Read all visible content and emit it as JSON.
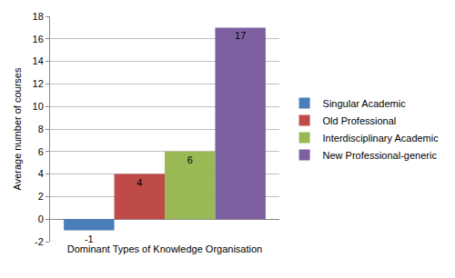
{
  "chart_data": {
    "type": "bar",
    "x_label": "Dominant Types of Knowledge Organisation",
    "y_label": "Average number of courses",
    "categories": [
      null
    ],
    "series": [
      {
        "name": "Singular Academic",
        "color": "#4a7ebb",
        "values": [
          -1
        ]
      },
      {
        "name": "Old Professional",
        "color": "#be4b48",
        "values": [
          4
        ]
      },
      {
        "name": "Interdisciplinary Academic",
        "color": "#98b954",
        "values": [
          6
        ]
      },
      {
        "name": "New Professional-generic",
        "color": "#7d60a0",
        "values": [
          17
        ]
      }
    ],
    "ylim": [
      -2,
      18
    ],
    "yticks": [
      -2,
      0,
      2,
      4,
      6,
      8,
      10,
      12,
      14,
      16,
      18
    ],
    "grid": true,
    "legend": "right",
    "data_labels": true,
    "tick_labels": "y"
  }
}
